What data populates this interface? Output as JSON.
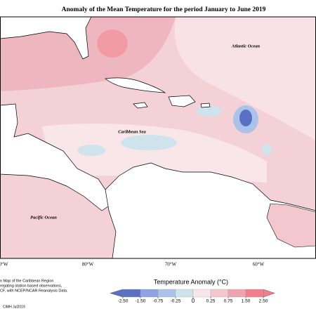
{
  "title": "Anomaly of the Mean Temperature for the period January to June 2019",
  "map": {
    "ocean_labels": [
      "Atlantic Ocean",
      "Caribbean Sea",
      "Pacific Ocean"
    ],
    "longitude_labels": [
      "0°W",
      "80°W",
      "70°W",
      "60°W"
    ]
  },
  "legend": {
    "title": "Temperature Anomaly (°C)",
    "ticks": [
      {
        "value": -2.5,
        "label": "-2.50"
      },
      {
        "value": -1.5,
        "label": "-1.50"
      },
      {
        "value": -0.75,
        "label": "-0.75"
      },
      {
        "value": -0.25,
        "label": "-0.25"
      },
      0,
      {
        "value": 0.25,
        "label": "0.25"
      },
      {
        "value": 0.75,
        "label": "0.75"
      },
      {
        "value": 1.5,
        "label": "1.50"
      },
      {
        "value": 2.5,
        "label": "2.50"
      }
    ],
    "colors": [
      "#5b70c2",
      "#8ea3e3",
      "#aac3e8",
      "#cfe3ec",
      "#f7e6e9",
      "#f3c7ce",
      "#eea4ae",
      "#f27e89"
    ]
  },
  "footnote": {
    "lines": [
      "n Map of the Caribbean Region",
      "regating station based observations,",
      "CF, with NCEP/NCAR Reanalysis Data."
    ],
    "credit": "CIMH Jul2019"
  }
}
